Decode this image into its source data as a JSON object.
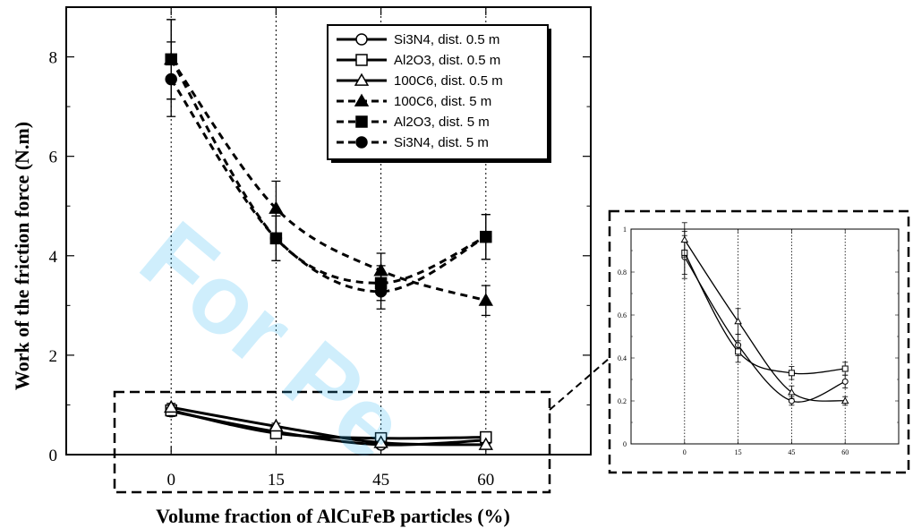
{
  "watermark": "For Pe",
  "chart_data": [
    {
      "type": "line",
      "title": "",
      "xlabel": "Volume fraction of AlCuFeB particles (%)",
      "ylabel": "Work of the friction force (N.m)",
      "x": [
        0,
        15,
        45,
        60
      ],
      "x_tick_labels": [
        "0",
        "15",
        "45",
        "60"
      ],
      "ylim": [
        0,
        9
      ],
      "y_ticks": [
        0,
        2,
        4,
        6,
        8
      ],
      "grid": "vertical dotted lines at each x category",
      "legend_position": "top-right",
      "series": [
        {
          "name": "Si3N4, dist. 0.5 m",
          "values": [
            0.87,
            0.46,
            0.2,
            0.29
          ],
          "marker": "circle-open",
          "line": "solid",
          "error": [
            0.1,
            0.05,
            0.03,
            0.03
          ]
        },
        {
          "name": "Al2O3, dist. 0.5 m",
          "values": [
            0.89,
            0.43,
            0.33,
            0.35
          ],
          "marker": "square-open",
          "line": "solid",
          "error": [
            0.1,
            0.05,
            0.03,
            0.03
          ]
        },
        {
          "name": "100C6, dist. 0.5 m",
          "values": [
            0.95,
            0.57,
            0.24,
            0.2
          ],
          "marker": "triangle-open",
          "line": "solid",
          "error": [
            0.08,
            0.06,
            0.03,
            0.03
          ]
        },
        {
          "name": "100C6, dist. 5 m",
          "values": [
            7.95,
            4.95,
            3.7,
            3.1
          ],
          "marker": "triangle-filled",
          "line": "dashed",
          "error": [
            0.8,
            0.55,
            0.35,
            0.3
          ]
        },
        {
          "name": "Al2O3, dist. 5 m",
          "values": [
            7.95,
            4.35,
            3.45,
            4.38
          ],
          "marker": "square-filled",
          "line": "dashed",
          "error": [
            0.8,
            0.45,
            0.35,
            0.45
          ]
        },
        {
          "name": "Si3N4, dist. 5 m",
          "values": [
            7.55,
            4.35,
            3.28,
            4.38
          ],
          "marker": "circle-filled",
          "line": "dashed",
          "error": [
            0.75,
            0.45,
            0.35,
            0.45
          ]
        }
      ]
    },
    {
      "type": "line",
      "title": "",
      "xlabel": "",
      "ylabel": "",
      "x": [
        0,
        15,
        45,
        60
      ],
      "x_tick_labels": [
        "0",
        "15",
        "45",
        "60"
      ],
      "ylim": [
        0,
        1
      ],
      "y_ticks": [
        0,
        0.2,
        0.4,
        0.6,
        0.8,
        1
      ],
      "y_tick_labels": [
        "0",
        "0.2",
        "0.4",
        "0.6",
        "0.8",
        "1"
      ],
      "grid": "vertical dotted lines at each x category",
      "series": [
        {
          "name": "Si3N4, dist. 0.5 m",
          "values": [
            0.87,
            0.46,
            0.2,
            0.29
          ],
          "marker": "circle-open",
          "error": [
            0.1,
            0.05,
            0.02,
            0.03
          ]
        },
        {
          "name": "Al2O3, dist. 0.5 m",
          "values": [
            0.89,
            0.43,
            0.33,
            0.35
          ],
          "marker": "square-open",
          "error": [
            0.1,
            0.05,
            0.03,
            0.03
          ]
        },
        {
          "name": "100C6, dist. 0.5 m",
          "values": [
            0.95,
            0.57,
            0.24,
            0.2
          ],
          "marker": "triangle-open",
          "error": [
            0.08,
            0.06,
            0.03,
            0.02
          ]
        }
      ]
    }
  ]
}
